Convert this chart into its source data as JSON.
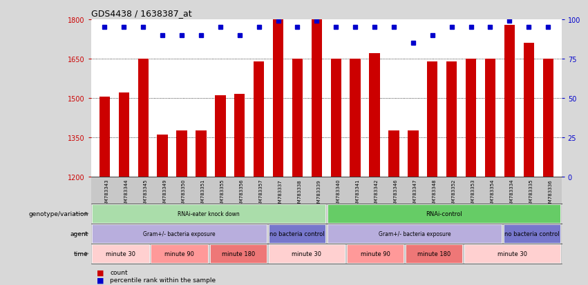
{
  "title": "GDS4438 / 1638387_at",
  "samples": [
    "GSM783343",
    "GSM783344",
    "GSM783345",
    "GSM783349",
    "GSM783350",
    "GSM783351",
    "GSM783355",
    "GSM783356",
    "GSM783357",
    "GSM783337",
    "GSM783338",
    "GSM783339",
    "GSM783340",
    "GSM783341",
    "GSM783342",
    "GSM783346",
    "GSM783347",
    "GSM783348",
    "GSM783352",
    "GSM783353",
    "GSM783354",
    "GSM783334",
    "GSM783335",
    "GSM783336"
  ],
  "counts": [
    1505,
    1520,
    1650,
    1360,
    1375,
    1375,
    1510,
    1515,
    1640,
    1800,
    1650,
    1800,
    1650,
    1650,
    1670,
    1375,
    1375,
    1640,
    1640,
    1650,
    1650,
    1780,
    1710,
    1650
  ],
  "percentile_vals": [
    95,
    95,
    95,
    90,
    90,
    90,
    95,
    90,
    95,
    99,
    95,
    99,
    95,
    95,
    95,
    95,
    85,
    90,
    95,
    95,
    95,
    99,
    95,
    95
  ],
  "ylim_left": [
    1200,
    1800
  ],
  "ylim_right": [
    0,
    100
  ],
  "yticks_left": [
    1200,
    1350,
    1500,
    1650,
    1800
  ],
  "yticks_right": [
    0,
    25,
    50,
    75,
    100
  ],
  "bar_color": "#cc0000",
  "dot_color": "#0000cc",
  "background_color": "#d8d8d8",
  "plot_bg": "#ffffff",
  "xtick_bg": "#c8c8c8",
  "genotype_groups": [
    {
      "label": "RNAi-eater knock down",
      "start": 0,
      "end": 12,
      "color": "#aaddaa"
    },
    {
      "label": "RNAi-control",
      "start": 12,
      "end": 24,
      "color": "#66cc66"
    }
  ],
  "agent_groups": [
    {
      "label": "Gram+/- bacteria exposure",
      "start": 0,
      "end": 9,
      "color": "#b8aedd"
    },
    {
      "label": "no bacteria control",
      "start": 9,
      "end": 12,
      "color": "#7777cc"
    },
    {
      "label": "Gram+/- bacteria exposure",
      "start": 12,
      "end": 21,
      "color": "#b8aedd"
    },
    {
      "label": "no bacteria control",
      "start": 21,
      "end": 24,
      "color": "#7777cc"
    }
  ],
  "time_groups": [
    {
      "label": "minute 30",
      "start": 0,
      "end": 3,
      "color": "#ffd0d0"
    },
    {
      "label": "minute 90",
      "start": 3,
      "end": 6,
      "color": "#ff9999"
    },
    {
      "label": "minute 180",
      "start": 6,
      "end": 9,
      "color": "#ee7777"
    },
    {
      "label": "minute 30",
      "start": 9,
      "end": 13,
      "color": "#ffd0d0"
    },
    {
      "label": "minute 90",
      "start": 13,
      "end": 16,
      "color": "#ff9999"
    },
    {
      "label": "minute 180",
      "start": 16,
      "end": 19,
      "color": "#ee7777"
    },
    {
      "label": "minute 30",
      "start": 19,
      "end": 24,
      "color": "#ffd0d0"
    }
  ],
  "row_labels": [
    "genotype/variation",
    "agent",
    "time"
  ],
  "legend_items": [
    {
      "color": "#cc0000",
      "label": "count"
    },
    {
      "color": "#0000cc",
      "label": "percentile rank within the sample"
    }
  ]
}
